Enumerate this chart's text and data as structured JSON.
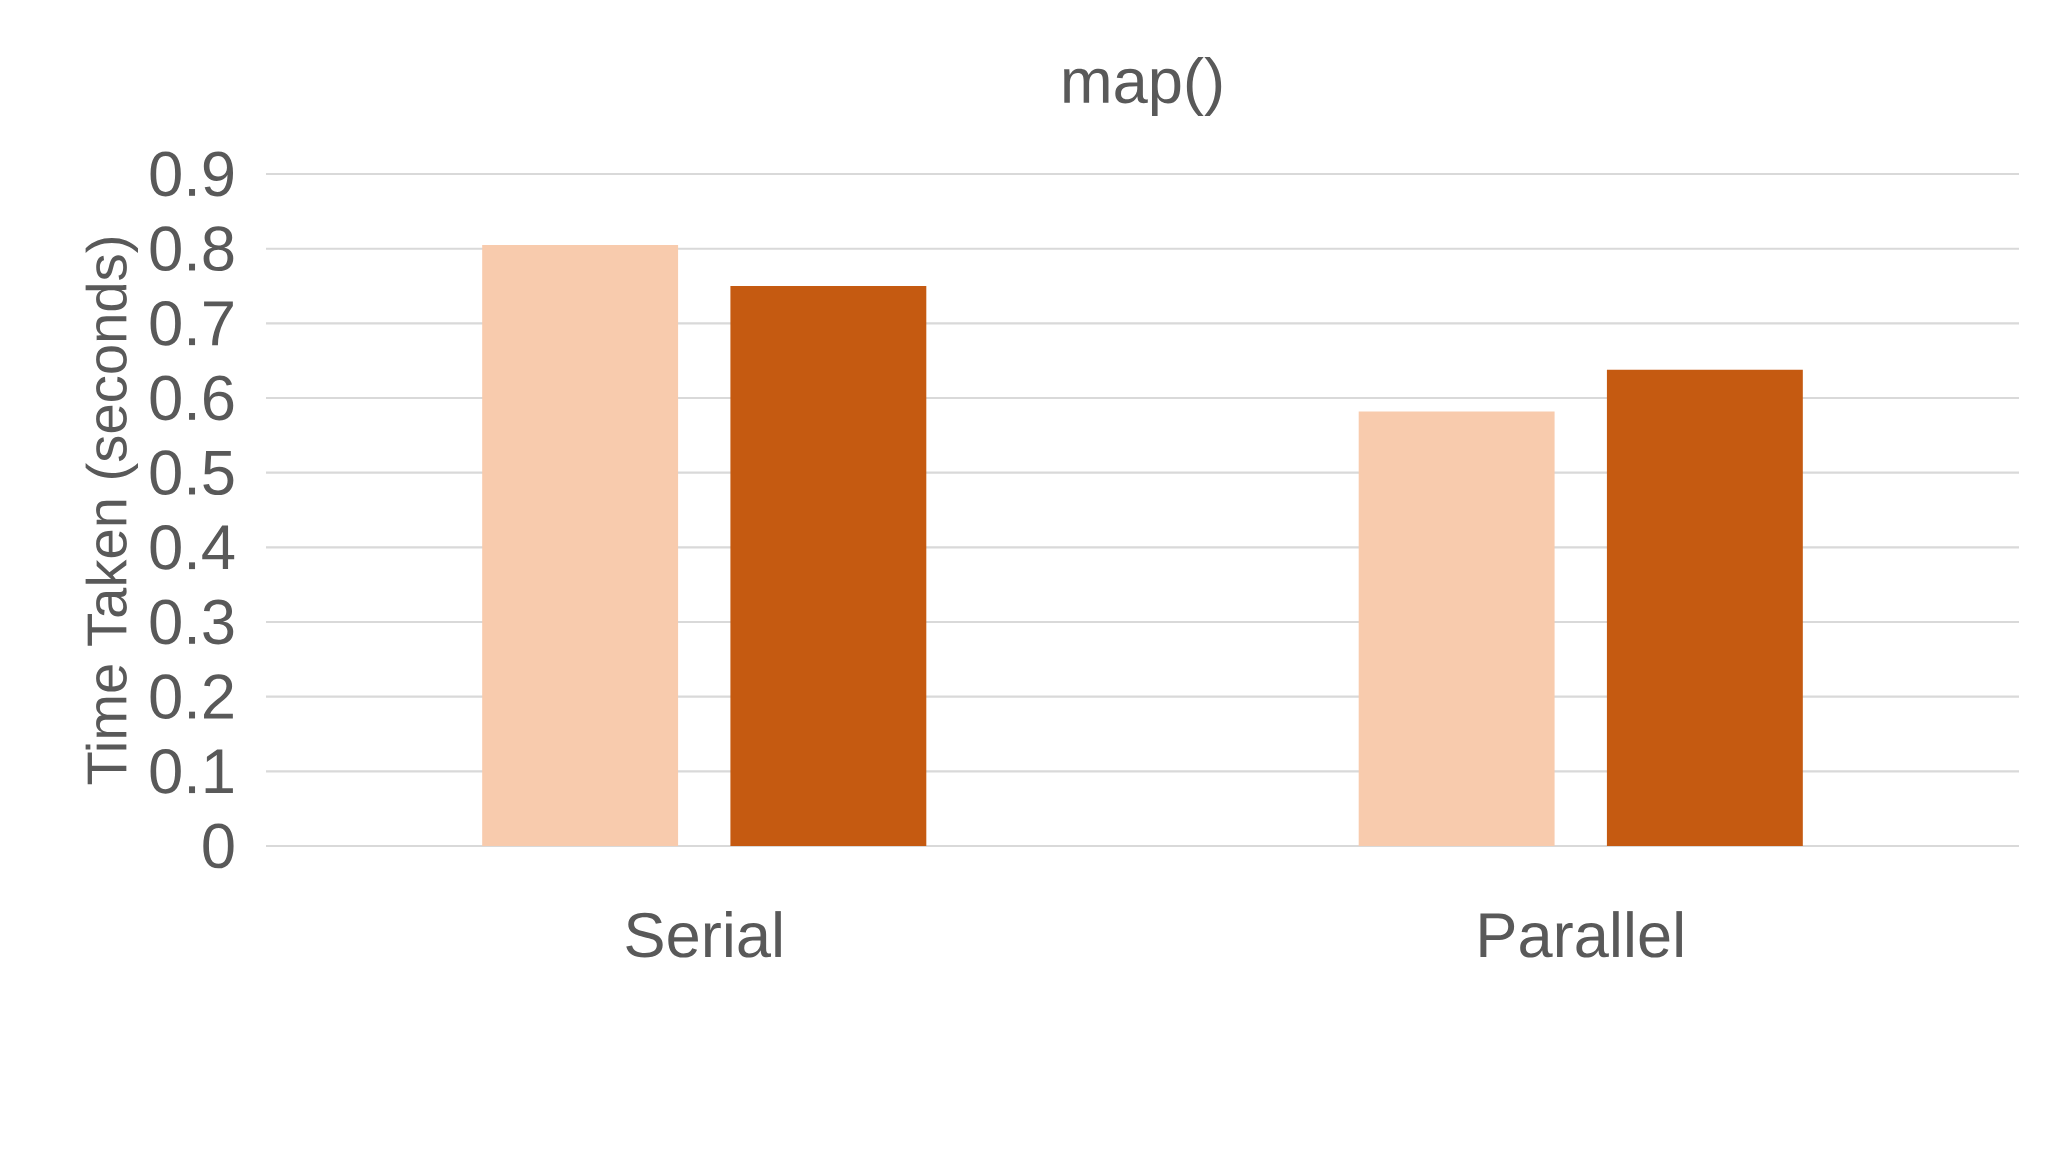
{
  "chart_data": {
    "type": "bar",
    "title": "map()",
    "ylabel": "Time Taken (seconds)",
    "categories": [
      "Serial",
      "Parallel"
    ],
    "series": [
      {
        "color": "#f8cbad",
        "values": [
          0.805,
          0.582
        ]
      },
      {
        "color": "#c55a11",
        "values": [
          0.75,
          0.638
        ]
      }
    ],
    "ylim": [
      0,
      0.9
    ],
    "yticks": [
      0,
      0.1,
      0.2,
      0.3,
      0.4,
      0.5,
      0.6,
      0.7,
      0.8,
      0.9
    ],
    "grid": "y"
  }
}
